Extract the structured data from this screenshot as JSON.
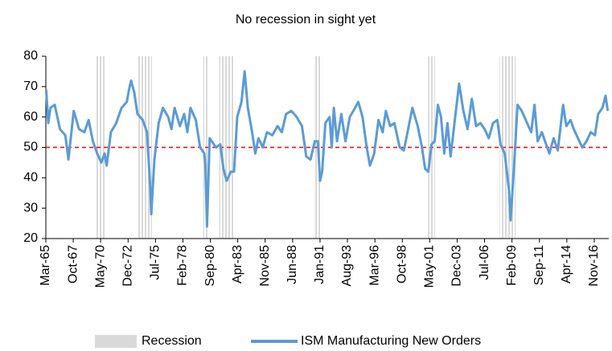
{
  "chart_data": {
    "type": "line",
    "title": "No recession in sight yet",
    "x": [
      1965.2,
      1965.4,
      1965.6,
      1966.0,
      1966.5,
      1967.0,
      1967.3,
      1967.8,
      1968.3,
      1968.8,
      1969.2,
      1969.6,
      1970.0,
      1970.4,
      1970.7,
      1970.9,
      1971.3,
      1971.8,
      1972.3,
      1972.8,
      1973.0,
      1973.2,
      1973.5,
      1973.8,
      1974.3,
      1974.7,
      1975.0,
      1975.1,
      1975.4,
      1975.8,
      1976.2,
      1976.7,
      1977.0,
      1977.3,
      1977.8,
      1978.2,
      1978.5,
      1978.8,
      1979.3,
      1979.7,
      1980.1,
      1980.2,
      1980.35,
      1980.6,
      1981.2,
      1981.6,
      1981.9,
      1982.2,
      1982.6,
      1982.9,
      1983.2,
      1983.6,
      1983.9,
      1984.2,
      1984.6,
      1984.9,
      1985.2,
      1985.6,
      1986.0,
      1986.5,
      1987.0,
      1987.4,
      1987.8,
      1988.3,
      1988.8,
      1989.3,
      1989.7,
      1990.1,
      1990.5,
      1990.8,
      1991.0,
      1991.2,
      1991.5,
      1991.9,
      1992.1,
      1992.3,
      1992.6,
      1993.0,
      1993.4,
      1993.8,
      1994.3,
      1994.6,
      1995.0,
      1995.4,
      1995.7,
      1996.1,
      1996.5,
      1996.9,
      1997.2,
      1997.6,
      1998.0,
      1998.5,
      1998.9,
      1999.3,
      1999.7,
      2000.2,
      2000.6,
      2000.9,
      2001.2,
      2001.5,
      2001.8,
      2002.1,
      2002.4,
      2002.7,
      2003.0,
      2003.3,
      2003.8,
      2004.1,
      2004.5,
      2004.9,
      2005.3,
      2005.7,
      2006.1,
      2006.5,
      2006.9,
      2007.3,
      2007.7,
      2008.0,
      2008.4,
      2008.8,
      2008.95,
      2009.3,
      2009.6,
      2010.0,
      2010.5,
      2010.9,
      2011.2,
      2011.5,
      2011.9,
      2012.3,
      2012.6,
      2013.0,
      2013.4,
      2013.9,
      2014.2,
      2014.6,
      2014.9,
      2015.3,
      2015.7,
      2016.1,
      2016.5,
      2016.9,
      2017.2,
      2017.6,
      2017.9,
      2018.1
    ],
    "series": [
      {
        "name": "ISM Manufacturing New Orders",
        "color": "#5b9bd5",
        "values": [
          69,
          58,
          63,
          64,
          56,
          54,
          46,
          62,
          56,
          55,
          59,
          52,
          48,
          45,
          48,
          44,
          55,
          58,
          63,
          65,
          69,
          72,
          68,
          61,
          59,
          55,
          37,
          28,
          46,
          58,
          63,
          60,
          56,
          63,
          57,
          61,
          55,
          63,
          59,
          50,
          48,
          44,
          24,
          53,
          50,
          51,
          43,
          39,
          42,
          42,
          60,
          65,
          75,
          63,
          55,
          48,
          53,
          50,
          55,
          54,
          57,
          55,
          61,
          62,
          60,
          57,
          47,
          46,
          52,
          52,
          39,
          42,
          58,
          60,
          50,
          63,
          52,
          61,
          52,
          60,
          63,
          65,
          60,
          50,
          44,
          48,
          59,
          55,
          62,
          57,
          58,
          50,
          49,
          56,
          63,
          57,
          50,
          43,
          42,
          51,
          52,
          64,
          60,
          48,
          58,
          47,
          62,
          71,
          62,
          56,
          66,
          57,
          58,
          56,
          53,
          58,
          59,
          51,
          48,
          36,
          26,
          45,
          64,
          62,
          58,
          55,
          64,
          52,
          55,
          51,
          48,
          53,
          49,
          64,
          57,
          59,
          56,
          53,
          50,
          52,
          55,
          54,
          61,
          63,
          67,
          62
        ]
      }
    ],
    "recession": {
      "name": "Recession",
      "color": "#d9d9d9",
      "ranges": [
        [
          1969.92,
          1970.83
        ],
        [
          1973.83,
          1975.17
        ],
        [
          1980.0,
          1980.5
        ],
        [
          1981.5,
          1982.83
        ],
        [
          1990.5,
          1991.17
        ],
        [
          2001.17,
          2001.83
        ],
        [
          2007.92,
          2009.42
        ]
      ]
    },
    "reference_line": {
      "value": 50,
      "color": "#ff0000"
    },
    "xlim": [
      1965.17,
      2018.2
    ],
    "xticks": [
      {
        "value": 1965.17,
        "label": "Mar-65"
      },
      {
        "value": 1967.75,
        "label": "Oct-67"
      },
      {
        "value": 1970.33,
        "label": "May-70"
      },
      {
        "value": 1972.92,
        "label": "Dec-72"
      },
      {
        "value": 1975.5,
        "label": "Jul-75"
      },
      {
        "value": 1978.08,
        "label": "Feb-78"
      },
      {
        "value": 1980.67,
        "label": "Sep-80"
      },
      {
        "value": 1983.25,
        "label": "Apr-83"
      },
      {
        "value": 1985.83,
        "label": "Nov-85"
      },
      {
        "value": 1988.42,
        "label": "Jun-88"
      },
      {
        "value": 1991.0,
        "label": "Jan-91"
      },
      {
        "value": 1993.58,
        "label": "Aug-93"
      },
      {
        "value": 1996.17,
        "label": "Mar-96"
      },
      {
        "value": 1998.75,
        "label": "Oct-98"
      },
      {
        "value": 2001.33,
        "label": "May-01"
      },
      {
        "value": 2003.92,
        "label": "Dec-03"
      },
      {
        "value": 2006.5,
        "label": "Jul-06"
      },
      {
        "value": 2009.08,
        "label": "Feb-09"
      },
      {
        "value": 2011.67,
        "label": "Sep-11"
      },
      {
        "value": 2014.25,
        "label": "Apr-14"
      },
      {
        "value": 2016.83,
        "label": "Nov-16"
      }
    ],
    "ylim": [
      20,
      80
    ],
    "yticks": [
      20,
      30,
      40,
      50,
      60,
      70,
      80
    ]
  }
}
